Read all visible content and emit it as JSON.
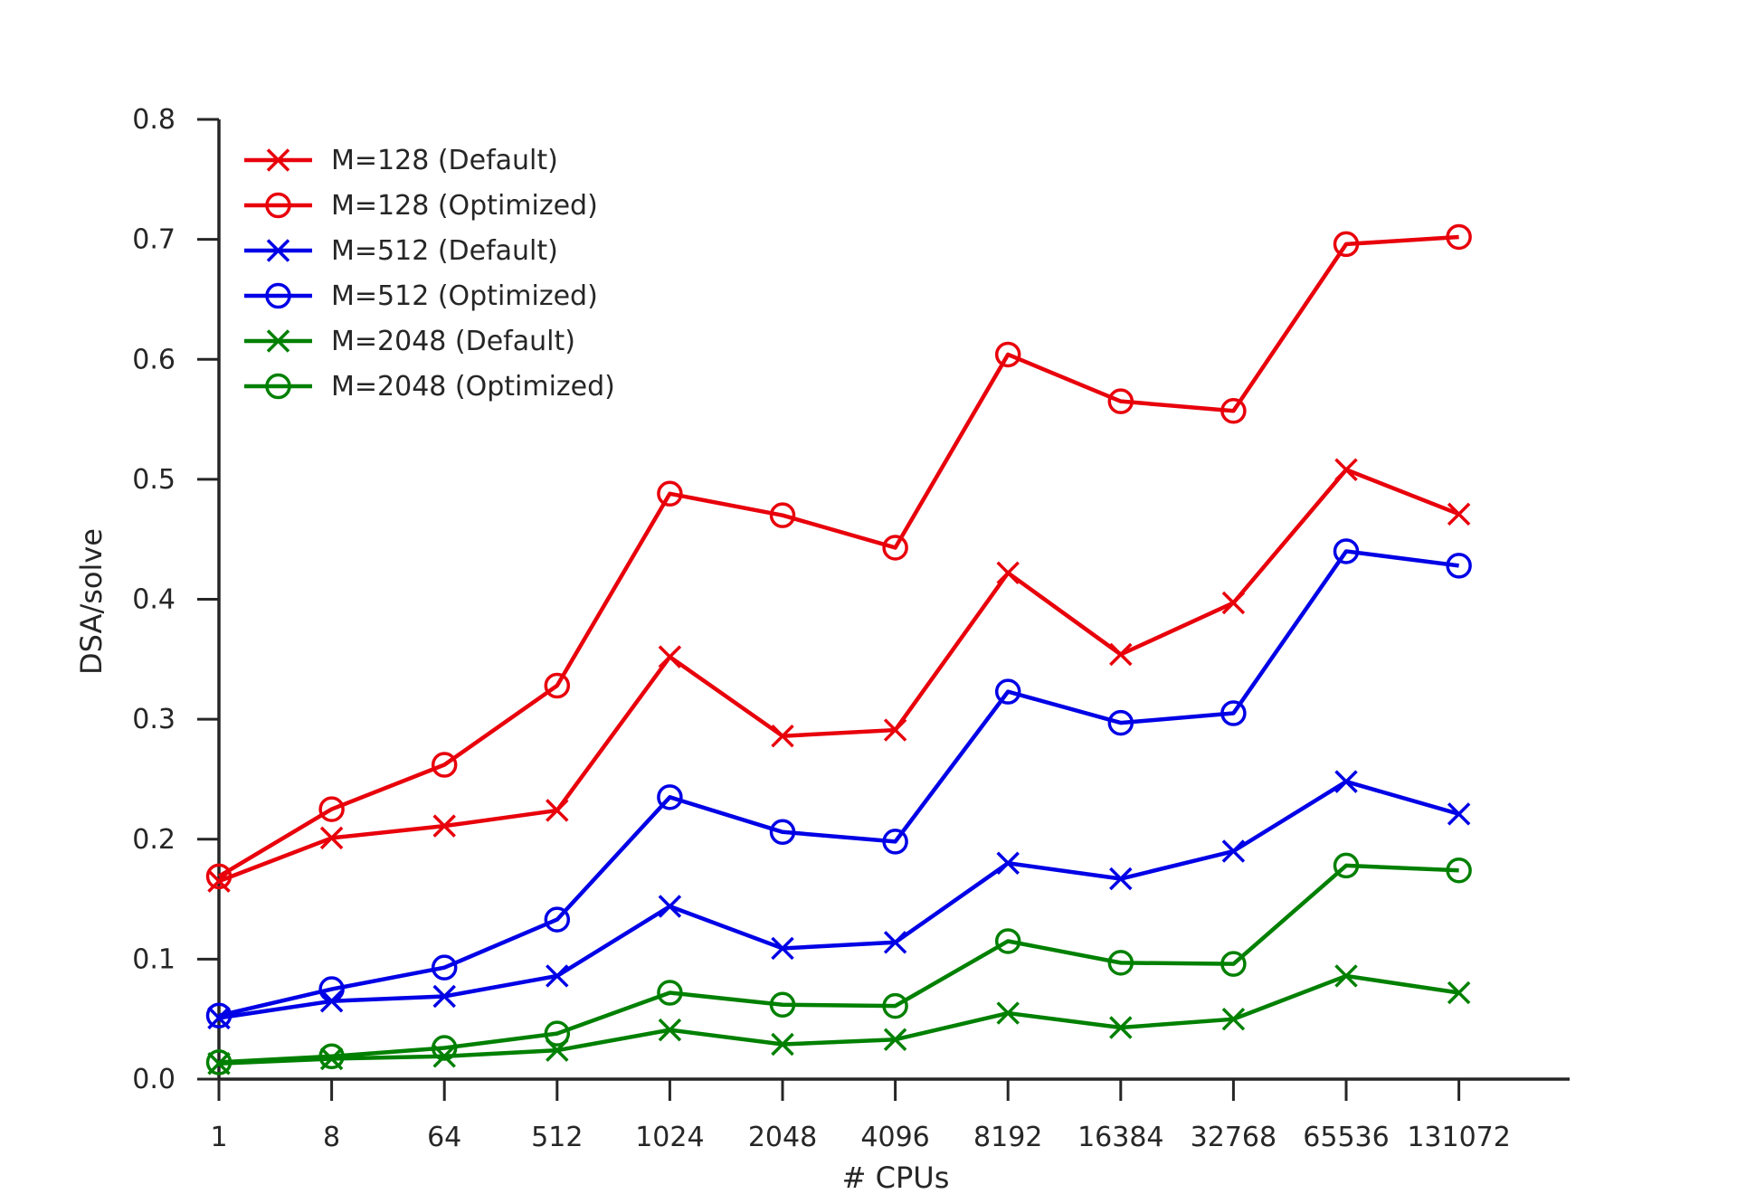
{
  "chart_data": {
    "type": "line",
    "title": "",
    "xlabel": "# CPUs",
    "ylabel": "DSA/solve",
    "categories": [
      "1",
      "8",
      "64",
      "512",
      "1024",
      "2048",
      "4096",
      "8192",
      "16384",
      "32768",
      "65536",
      "131072"
    ],
    "ylim": [
      0,
      0.8
    ],
    "yticks": [
      "0.0",
      "0.1",
      "0.2",
      "0.3",
      "0.4",
      "0.5",
      "0.6",
      "0.7",
      "0.8"
    ],
    "grid": false,
    "legend": "top-left",
    "series": [
      {
        "name": "M=128 (Default)",
        "color": "#e8000b",
        "marker": "x",
        "values": [
          0.165,
          0.201,
          0.211,
          0.224,
          0.352,
          0.286,
          0.291,
          0.422,
          0.354,
          0.397,
          0.508,
          0.471
        ]
      },
      {
        "name": "M=128 (Optimized)",
        "color": "#e8000b",
        "marker": "o",
        "values": [
          0.169,
          0.225,
          0.262,
          0.328,
          0.488,
          0.47,
          0.443,
          0.604,
          0.565,
          0.557,
          0.696,
          0.702
        ]
      },
      {
        "name": "M=512 (Default)",
        "color": "#0000e6",
        "marker": "x",
        "values": [
          0.051,
          0.065,
          0.069,
          0.086,
          0.144,
          0.109,
          0.114,
          0.18,
          0.167,
          0.19,
          0.248,
          0.221
        ]
      },
      {
        "name": "M=512 (Optimized)",
        "color": "#0000e6",
        "marker": "o",
        "values": [
          0.053,
          0.075,
          0.093,
          0.133,
          0.235,
          0.206,
          0.198,
          0.323,
          0.297,
          0.305,
          0.44,
          0.428
        ]
      },
      {
        "name": "M=2048 (Default)",
        "color": "#008000",
        "marker": "x",
        "values": [
          0.013,
          0.017,
          0.019,
          0.024,
          0.041,
          0.029,
          0.033,
          0.055,
          0.043,
          0.05,
          0.086,
          0.072
        ]
      },
      {
        "name": "M=2048 (Optimized)",
        "color": "#008000",
        "marker": "o",
        "values": [
          0.014,
          0.019,
          0.026,
          0.038,
          0.072,
          0.062,
          0.061,
          0.115,
          0.097,
          0.096,
          0.178,
          0.174
        ]
      }
    ]
  }
}
